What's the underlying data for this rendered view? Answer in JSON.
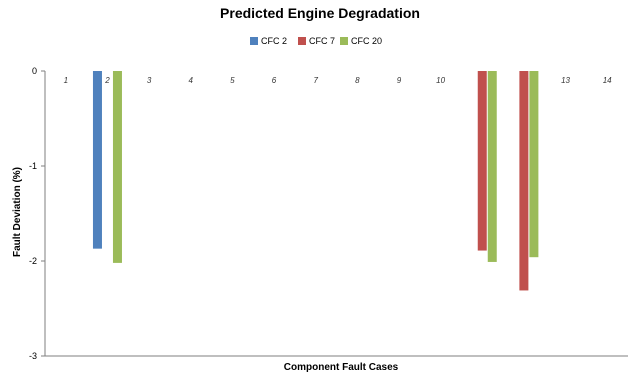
{
  "chart_data": {
    "type": "bar",
    "title": "Predicted Engine Degradation",
    "xlabel": "Component Fault Cases",
    "ylabel": "Fault Deviation (%)",
    "ylim": [
      -3,
      0
    ],
    "y_ticks": [
      0,
      -1,
      -2,
      -3
    ],
    "categories": [
      "1",
      "2",
      "3",
      "4",
      "5",
      "6",
      "7",
      "8",
      "9",
      "10",
      "11",
      "12",
      "13",
      "14"
    ],
    "legend_position": "top-center",
    "grid": false,
    "series": [
      {
        "name": "CFC 2",
        "color": "#4F81BD",
        "values": [
          null,
          -1.87,
          null,
          null,
          null,
          null,
          null,
          null,
          null,
          null,
          null,
          null,
          null,
          null
        ]
      },
      {
        "name": "CFC 7",
        "color": "#C0504D",
        "values": [
          null,
          null,
          null,
          null,
          null,
          null,
          null,
          null,
          null,
          null,
          -1.89,
          -2.31,
          null,
          null
        ]
      },
      {
        "name": "CFC 20",
        "color": "#9BBB59",
        "values": [
          null,
          -2.02,
          null,
          null,
          null,
          null,
          null,
          null,
          null,
          null,
          -2.01,
          -1.96,
          null,
          null
        ]
      }
    ]
  }
}
